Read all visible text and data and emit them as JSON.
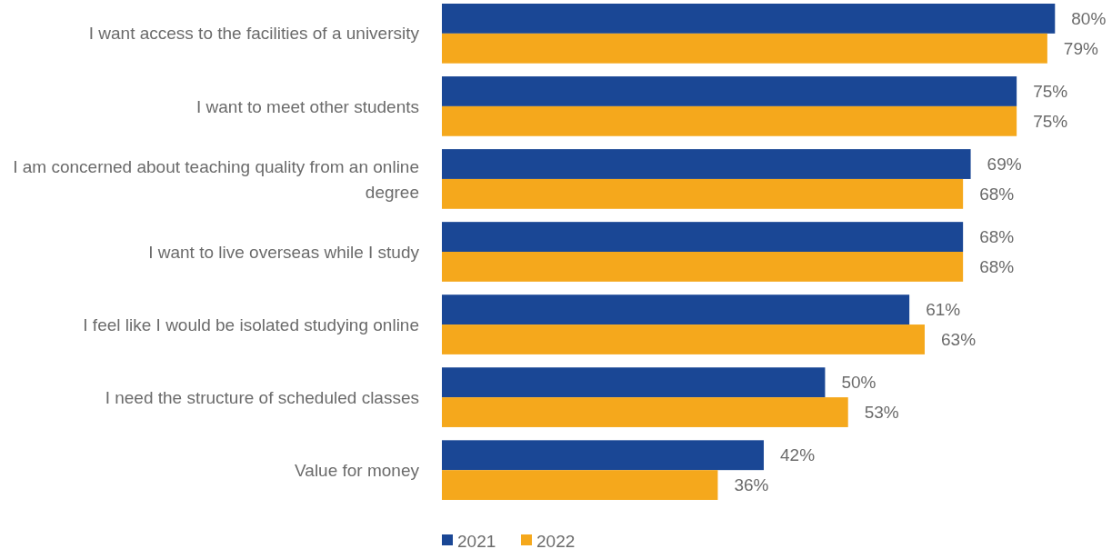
{
  "chart_data": {
    "type": "bar",
    "orientation": "horizontal",
    "categories": [
      "I want access to the facilities of a university",
      "I want to meet other students",
      "I am concerned about teaching quality from an online degree",
      "I want to live overseas while I study",
      "I feel like I would be isolated studying online",
      "I need the structure of scheduled classes",
      "Value for money"
    ],
    "series": [
      {
        "name": "2021",
        "color": "#1a4795",
        "values": [
          80,
          75,
          69,
          68,
          61,
          50,
          42
        ],
        "value_labels": [
          "80%",
          "75%",
          "69%",
          "68%",
          "61%",
          "50%",
          "42%"
        ]
      },
      {
        "name": "2022",
        "color": "#f5a81c",
        "values": [
          79,
          75,
          68,
          68,
          63,
          53,
          36
        ],
        "value_labels": [
          "79%",
          "75%",
          "68%",
          "68%",
          "63%",
          "53%",
          "36%"
        ]
      }
    ],
    "legend": "bottom"
  }
}
